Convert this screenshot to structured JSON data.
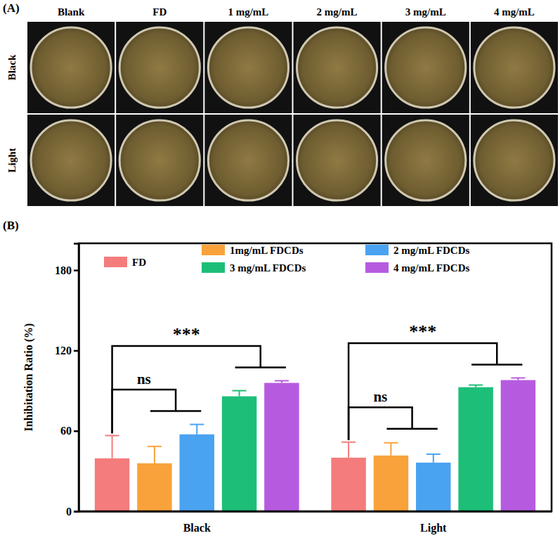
{
  "panel_a": {
    "label": "(A)",
    "columns": [
      "Blank",
      "FD",
      "1 mg/mL",
      "2 mg/mL",
      "3 mg/mL",
      "4 mg/mL"
    ],
    "rows": [
      "Black",
      "Light"
    ]
  },
  "panel_b": {
    "label": "(B)"
  },
  "chart_data": {
    "type": "bar",
    "y_label": "Inhibitation Ratio (%)",
    "categories": [
      "Black",
      "Light"
    ],
    "series": [
      {
        "name": "FD",
        "color": "#f47c7c",
        "values": [
          39.5,
          40
        ],
        "errors": [
          17,
          11.6
        ]
      },
      {
        "name": "1mg/mL FDCDs",
        "color": "#f9a23b",
        "values": [
          35.8,
          41.6
        ],
        "errors": [
          12.6,
          9.5
        ]
      },
      {
        "name": "2 mg/mL FDCDs",
        "color": "#4aa3f0",
        "values": [
          57.4,
          36.3
        ],
        "errors": [
          7.4,
          6.3
        ]
      },
      {
        "name": "3 mg/mL FDCDs",
        "color": "#1dbf78",
        "values": [
          85.8,
          92.6
        ],
        "errors": [
          4.2,
          1.6
        ]
      },
      {
        "name": "4 mg/mL FDCDs",
        "color": "#b65be0",
        "values": [
          95.8,
          97.9
        ],
        "errors": [
          1.6,
          1.6
        ]
      }
    ],
    "ylim": [
      0,
      200
    ],
    "yticks": [
      0,
      60,
      120,
      180
    ],
    "grid": false,
    "annotations": [
      {
        "text": "ns",
        "category": 0,
        "from": 0,
        "to": [
          1,
          2
        ]
      },
      {
        "text": "***",
        "category": 0,
        "from": 0,
        "to": [
          3,
          4
        ]
      },
      {
        "text": "ns",
        "category": 1,
        "from": 0,
        "to": [
          1,
          2
        ]
      },
      {
        "text": "***",
        "category": 1,
        "from": 0,
        "to": [
          3,
          4
        ]
      }
    ]
  }
}
